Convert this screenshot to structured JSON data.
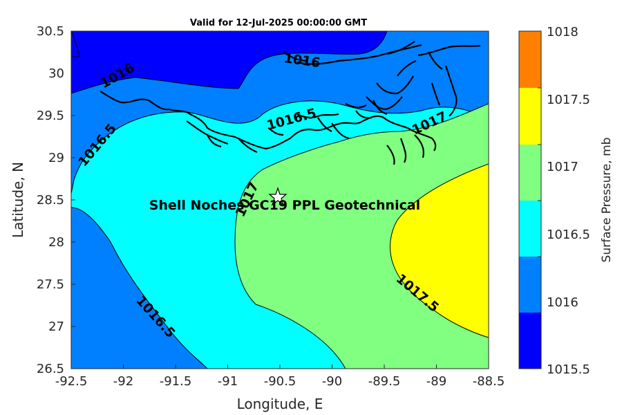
{
  "title": "Valid for 12-Jul-2025 00:00:00 GMT",
  "x_axis": {
    "label": "Longitude, E",
    "ticks": [
      "-92.5",
      "-92",
      "-91.5",
      "-91",
      "-90.5",
      "-90",
      "-89.5",
      "-89",
      "-88.5"
    ]
  },
  "y_axis": {
    "label": "Latitude, N",
    "ticks": [
      "30.5",
      "30",
      "29.5",
      "29",
      "28.5",
      "28",
      "27.5",
      "27",
      "26.5"
    ]
  },
  "colorbar": {
    "label": "Surface Pressure, mb",
    "ticks": [
      "1018",
      "1017.5",
      "1017",
      "1016.5",
      "1016",
      "1015.5"
    ],
    "colors": [
      "#0000ff",
      "#0080ff",
      "#00ffff",
      "#80ff80",
      "#ffff00",
      "#ff8000"
    ]
  },
  "site": {
    "label": "Shell Noches GC19 PPL  Geotechnical",
    "marker": "star-icon"
  },
  "contour_labels": [
    "1016",
    "1016",
    "1016.5",
    "1016.5",
    "1017",
    "1017",
    "1016.5",
    "1017.5"
  ],
  "colors": {
    "level_1015_5": "#0000ff",
    "level_1016": "#0080ff",
    "level_1016_5": "#00ffff",
    "level_1017": "#80ff80",
    "level_1017_5": "#ffff00"
  }
}
